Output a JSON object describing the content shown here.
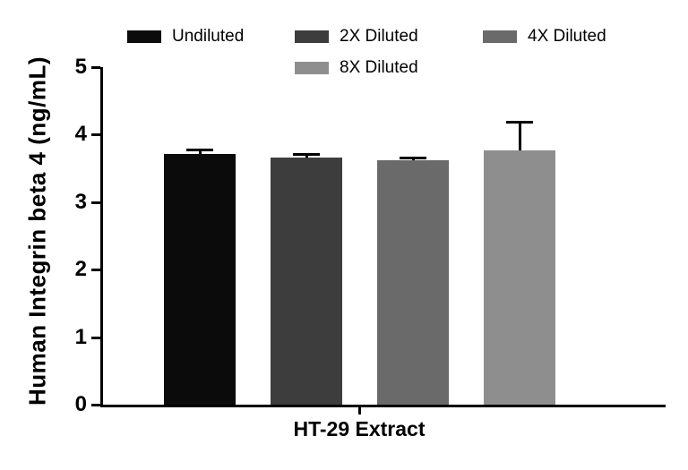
{
  "chart_data": {
    "type": "bar",
    "title": "",
    "categories": [
      "HT-29 Extract"
    ],
    "series": [
      {
        "name": "Undiluted",
        "values": [
          3.71
        ],
        "errors": [
          0.08
        ],
        "color": "#0b0b0b"
      },
      {
        "name": "2X Diluted",
        "values": [
          3.66
        ],
        "errors": [
          0.07
        ],
        "color": "#3d3d3d"
      },
      {
        "name": "4X Diluted",
        "values": [
          3.62
        ],
        "errors": [
          0.05
        ],
        "color": "#6a6a6a"
      },
      {
        "name": "8X Diluted",
        "values": [
          3.76
        ],
        "errors": [
          0.44
        ],
        "color": "#8e8e8e"
      }
    ],
    "xlabel": "HT-29 Extract",
    "ylabel": "Human Integrin beta 4 (ng/mL)",
    "ylim": [
      0,
      5
    ],
    "yticks": [
      0,
      1,
      2,
      3,
      4,
      5
    ],
    "legend_position": "top",
    "grid": false,
    "error_bar_color": "#000000",
    "axis_color": "#000000"
  }
}
